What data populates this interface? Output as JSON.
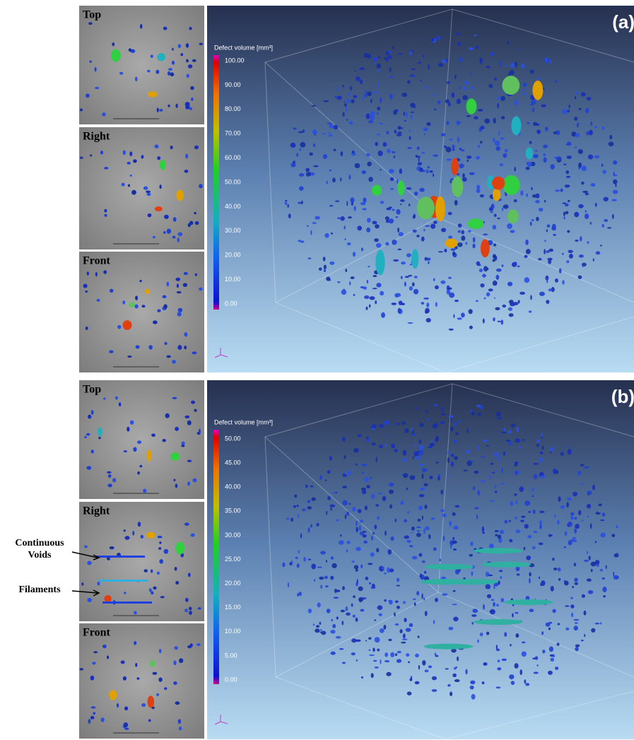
{
  "panels": [
    {
      "label": "(a)",
      "views": [
        "Top",
        "Right",
        "Front"
      ],
      "colorbar": {
        "title": "Defect volume [mm³]",
        "ticks": [
          "100.00",
          "90.00",
          "80.00",
          "70.00",
          "60.00",
          "50.00",
          "40.00",
          "30.00",
          "20.00",
          "10.00",
          "0.00"
        ]
      }
    },
    {
      "label": "(b)",
      "views": [
        "Top",
        "Right",
        "Front"
      ],
      "colorbar": {
        "title": "Defect volume [mm³]",
        "ticks": [
          "50.00",
          "45.00",
          "40.00",
          "35.00",
          "30.00",
          "25.00",
          "20.00",
          "15.00",
          "10.00",
          "5.00",
          "0.00"
        ]
      }
    }
  ],
  "annotations": [
    "Continuous Voids",
    "Filaments"
  ]
}
